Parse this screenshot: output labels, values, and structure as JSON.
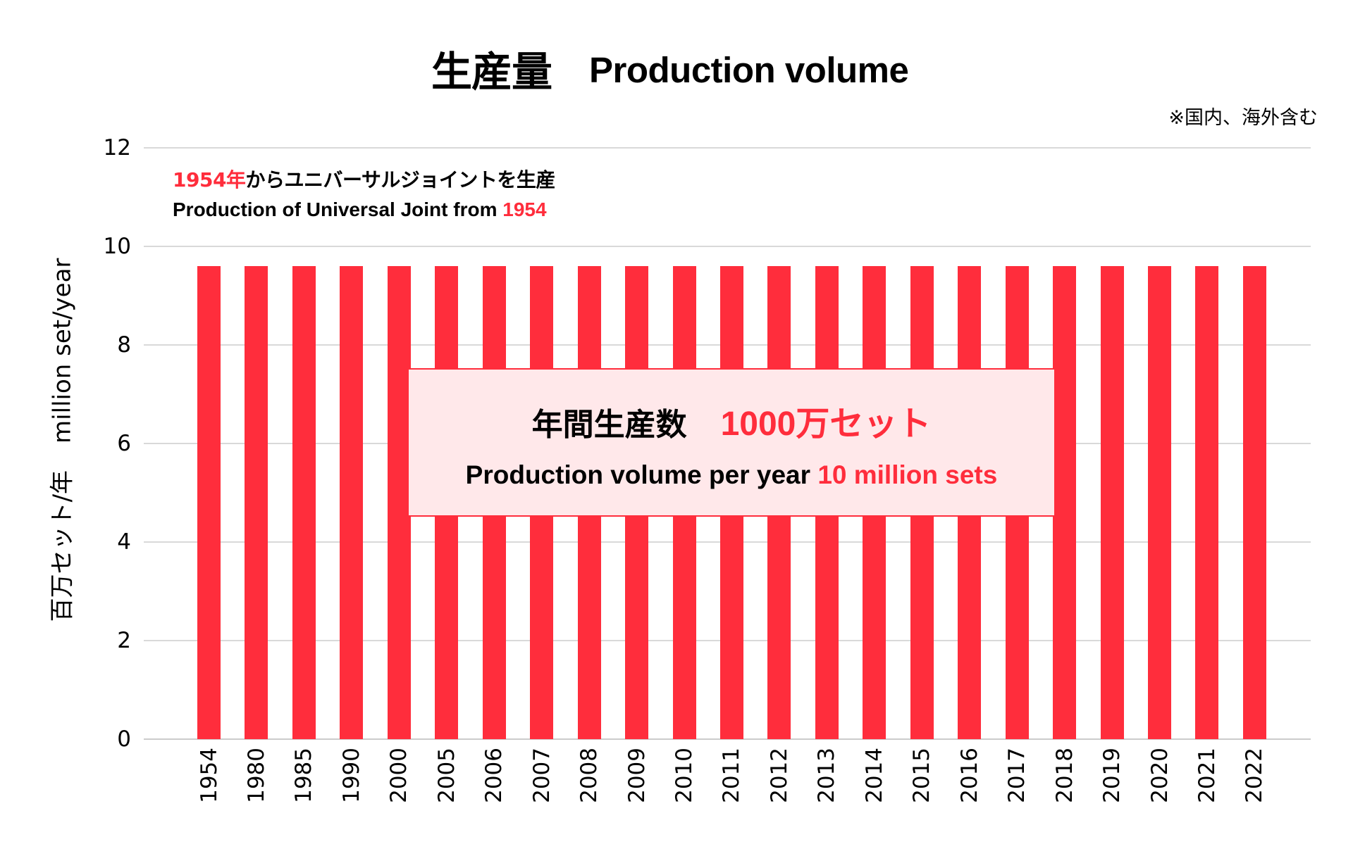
{
  "title": {
    "jp": "生産量",
    "en": "Production volume"
  },
  "note": "※国内、海外含む",
  "y_axis": {
    "label_jp": "百万セット/年",
    "label_en": "million set/year",
    "ticks": [
      "0",
      "2",
      "4",
      "6",
      "8",
      "10",
      "12"
    ]
  },
  "annotation": {
    "line1_red": "1954年",
    "line1_rest": "からユニバーサルジョイントを生産",
    "line2_rest": "Production of Universal Joint from ",
    "line2_red": "1954"
  },
  "callout": {
    "line1_label": "年間生産数",
    "line1_value": "1000万セット",
    "line2_label": "Production volume per year ",
    "line2_value": "10 million sets"
  },
  "colors": {
    "bar": "#FF2D3C",
    "accent": "#FF2D3C",
    "callout_fill": "#FFE8EA",
    "grid": "#D9D9D9"
  },
  "chart_data": {
    "type": "bar",
    "title": "生産量 Production volume",
    "subtitle": "※国内、海外含む",
    "xlabel": "",
    "ylabel": "百万セット/年 million set/year",
    "ylim": [
      0,
      12
    ],
    "yticks": [
      0,
      2,
      4,
      6,
      8,
      10,
      12
    ],
    "grid": true,
    "legend": null,
    "categories": [
      "1954",
      "1980",
      "1985",
      "1990",
      "2000",
      "2005",
      "2006",
      "2007",
      "2008",
      "2009",
      "2010",
      "2011",
      "2012",
      "2013",
      "2014",
      "2015",
      "2016",
      "2017",
      "2018",
      "2019",
      "2020",
      "2021",
      "2022"
    ],
    "values": [
      9.6,
      9.6,
      9.6,
      9.6,
      9.6,
      9.6,
      9.6,
      9.6,
      9.6,
      9.6,
      9.6,
      9.6,
      9.6,
      9.6,
      9.6,
      9.6,
      9.6,
      9.6,
      9.6,
      9.6,
      9.6,
      9.6,
      9.6
    ],
    "annotations": [
      "1954年からユニバーサルジョイントを生産 / Production of Universal Joint from 1954",
      "年間生産数 1000万セット / Production volume per year 10 million sets"
    ]
  }
}
